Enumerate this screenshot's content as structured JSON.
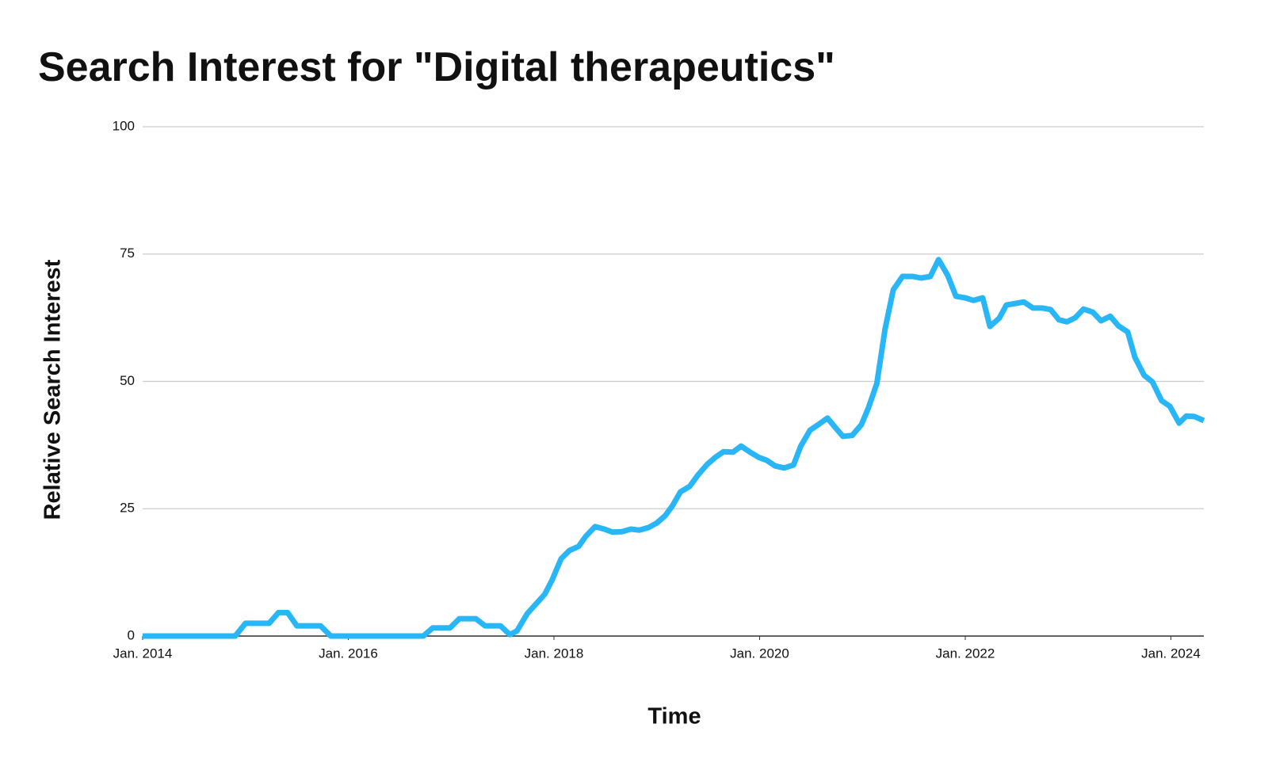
{
  "chart_data": {
    "type": "line",
    "title": "Search Interest for \"Digital therapeutics\"",
    "xlabel": "Time",
    "ylabel": "Relative Search Interest",
    "color": "#29b6f6",
    "grid": true,
    "x": [
      2014,
      2014.9,
      2015.0,
      2015.23,
      2015.32,
      2015.41,
      2015.5,
      2015.73,
      2015.83,
      2016.73,
      2016.82,
      2016.99,
      2017.08,
      2017.24,
      2017.33,
      2017.48,
      2017.57,
      2017.64,
      2017.74,
      2017.91,
      2017.98,
      2018.07,
      2018.15,
      2018.24,
      2018.31,
      2018.4,
      2018.49,
      2018.57,
      2018.66,
      2018.75,
      2018.83,
      2018.92,
      2019.0,
      2019.08,
      2019.15,
      2019.23,
      2019.32,
      2019.4,
      2019.49,
      2019.57,
      2019.65,
      2019.74,
      2019.82,
      2019.9,
      2019.99,
      2020.07,
      2020.15,
      2020.24,
      2020.33,
      2020.4,
      2020.49,
      2020.57,
      2020.66,
      2020.73,
      2020.81,
      2020.9,
      2020.99,
      2021.06,
      2021.14,
      2021.22,
      2021.3,
      2021.39,
      2021.49,
      2021.57,
      2021.66,
      2021.74,
      2021.83,
      2021.91,
      2022.0,
      2022.08,
      2022.17,
      2022.24,
      2022.33,
      2022.4,
      2022.49,
      2022.57,
      2022.66,
      2022.75,
      2022.83,
      2022.91,
      2022.99,
      2023.07,
      2023.15,
      2023.24,
      2023.32,
      2023.41,
      2023.49,
      2023.58,
      2023.65,
      2023.74,
      2023.82,
      2023.91,
      2023.99,
      2024.08,
      2024.15,
      2024.23,
      2024.32
    ],
    "values": [
      0,
      0,
      2.5,
      2.5,
      4.6,
      4.6,
      2,
      2,
      0,
      0,
      1.6,
      1.6,
      3.4,
      3.4,
      2,
      2,
      0.3,
      1,
      4.4,
      8.2,
      10.9,
      15.2,
      16.8,
      17.6,
      19.6,
      21.5,
      21,
      20.4,
      20.5,
      21,
      20.8,
      21.3,
      22.2,
      23.6,
      25.5,
      28.3,
      29.4,
      31.6,
      33.7,
      35.1,
      36.2,
      36.1,
      37.3,
      36.2,
      35.1,
      34.5,
      33.4,
      33,
      33.6,
      37.3,
      40.4,
      41.5,
      42.8,
      41.1,
      39.2,
      39.4,
      41.5,
      44.9,
      49.6,
      60.3,
      68,
      70.6,
      70.6,
      70.3,
      70.6,
      73.9,
      70.8,
      66.7,
      66.4,
      65.9,
      66.4,
      60.8,
      62.4,
      65,
      65.3,
      65.6,
      64.4,
      64.4,
      64.1,
      62.1,
      61.7,
      62.5,
      64.2,
      63.6,
      61.9,
      62.8,
      60.9,
      59.7,
      54.7,
      51.2,
      49.9,
      46.2,
      45.1,
      41.8,
      43.2,
      43.1,
      42.3
    ],
    "xlim": [
      2014,
      2024.32
    ],
    "xticks": [
      {
        "value": 2014,
        "label": "Jan. 2014"
      },
      {
        "value": 2016,
        "label": "Jan. 2016"
      },
      {
        "value": 2018,
        "label": "Jan. 2018"
      },
      {
        "value": 2020,
        "label": "Jan. 2020"
      },
      {
        "value": 2022,
        "label": "Jan. 2022"
      },
      {
        "value": 2024,
        "label": "Jan. 2024"
      }
    ],
    "ylim": [
      0,
      100
    ],
    "yticks": [
      0,
      25,
      50,
      75,
      100
    ]
  }
}
